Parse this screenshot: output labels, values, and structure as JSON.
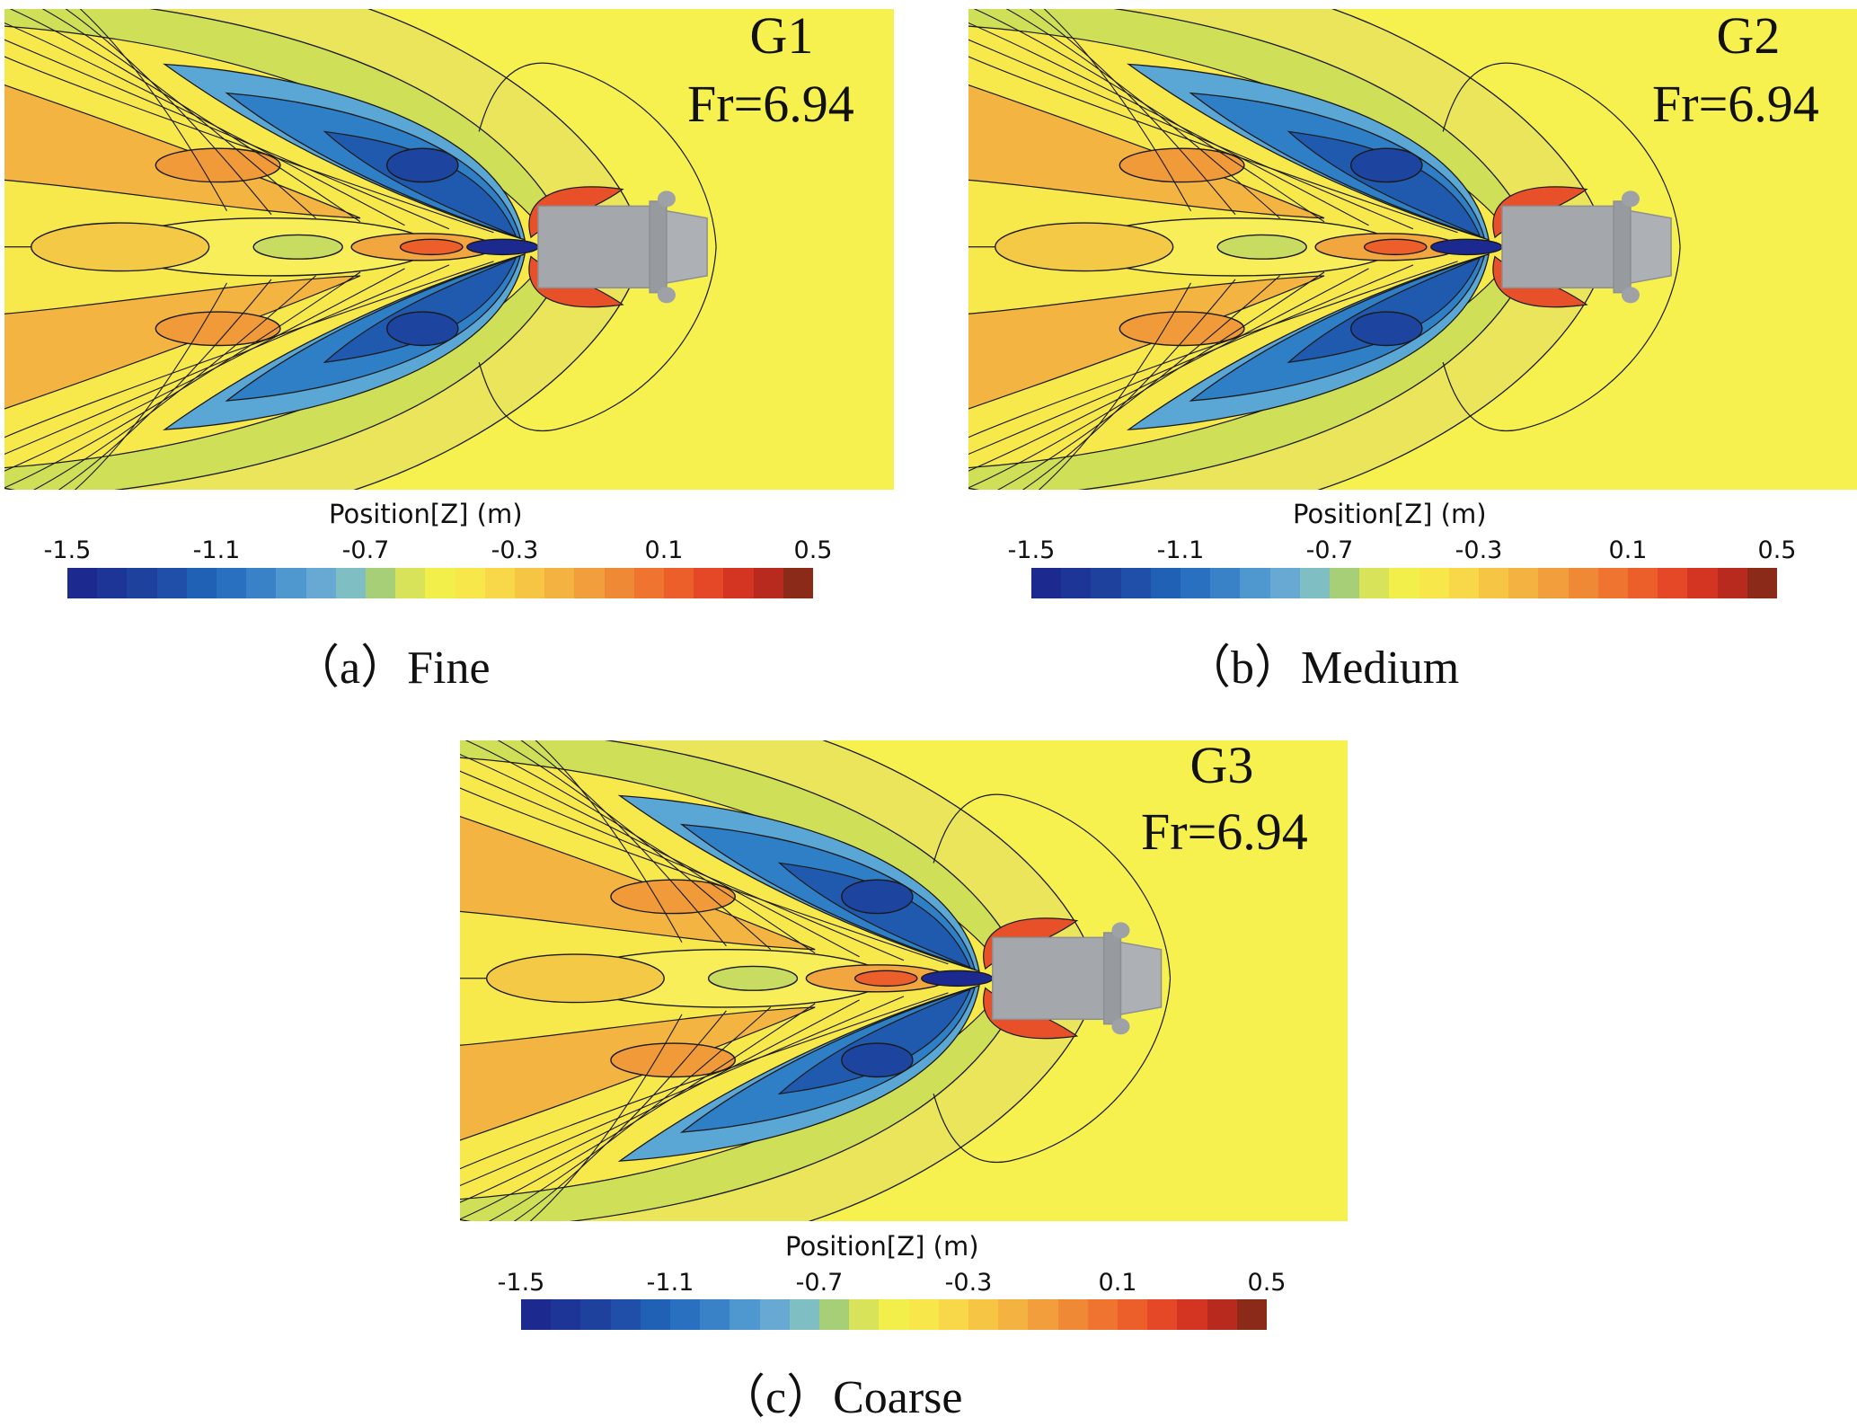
{
  "legend": {
    "title": "Position[Z] (m)",
    "ticks": [
      "-1.5",
      "-1.1",
      "-0.7",
      "-0.3",
      "0.1",
      "0.5"
    ],
    "colors": [
      "#1c2a8f",
      "#1d3596",
      "#1e419e",
      "#1f4fa8",
      "#2060b5",
      "#2a70c0",
      "#3a82c8",
      "#4f97cf",
      "#67a9d2",
      "#7fbfc4",
      "#a6cf78",
      "#d8e35a",
      "#f2ee4a",
      "#f8e74a",
      "#f8d848",
      "#f6c544",
      "#f4b240",
      "#f29e3c",
      "#f08936",
      "#ee7430",
      "#ec5e2a",
      "#e44826",
      "#d43522",
      "#b82a1e",
      "#8c2a1a"
    ]
  },
  "panels": [
    {
      "grid": "G1",
      "fr": "Fr=6.94",
      "caption": "（a）Fine"
    },
    {
      "grid": "G2",
      "fr": "Fr=6.94",
      "caption": "（b）Medium"
    },
    {
      "grid": "G3",
      "fr": "Fr=6.94",
      "caption": "（c）Coarse"
    }
  ]
}
